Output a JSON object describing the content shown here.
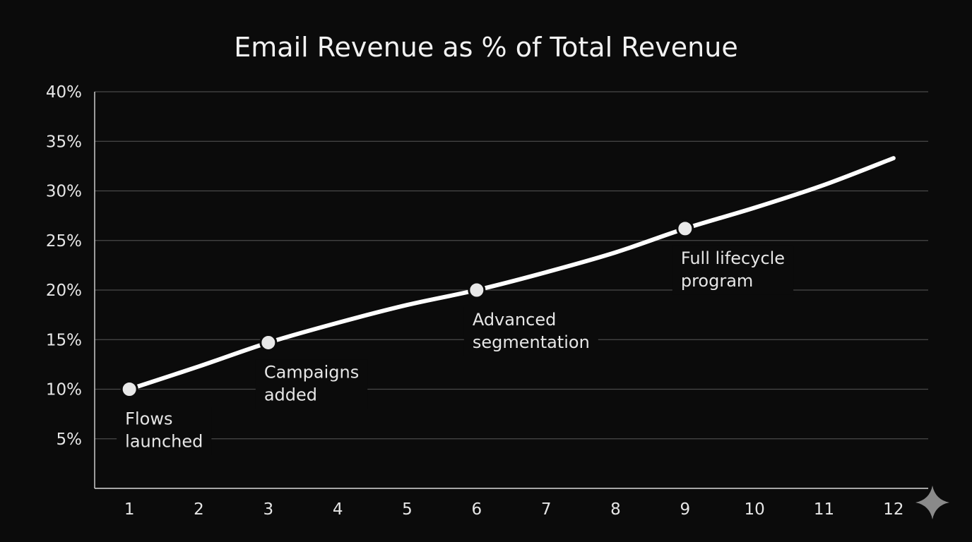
{
  "chart_data": {
    "type": "line",
    "title": "Email Revenue as % of Total Revenue",
    "xlabel": "",
    "ylabel": "",
    "x": [
      1,
      2,
      3,
      4,
      5,
      6,
      7,
      8,
      9,
      10,
      11,
      12
    ],
    "x_tick_labels": [
      "1",
      "2",
      "3",
      "4",
      "5",
      "6",
      "7",
      "8",
      "9",
      "10",
      "11",
      "12"
    ],
    "y_tick_labels": [
      "5%",
      "10%",
      "15%",
      "20%",
      "25%",
      "30%",
      "35%",
      "40%"
    ],
    "y_ticks": [
      5,
      10,
      15,
      20,
      25,
      30,
      35,
      40
    ],
    "xlim": [
      0.5,
      12.5
    ],
    "ylim": [
      0,
      40
    ],
    "grid": true,
    "series": [
      {
        "values": [
          10,
          12.3,
          14.7,
          16.7,
          18.5,
          20,
          21.8,
          23.8,
          26.2,
          28.3,
          30.6,
          33.3
        ],
        "color": "#ffffff"
      }
    ],
    "annotations": [
      {
        "x": 1,
        "y": 10,
        "lines": [
          "Flows",
          "launched"
        ]
      },
      {
        "x": 3,
        "y": 14.7,
        "lines": [
          "Campaigns",
          "added"
        ]
      },
      {
        "x": 6,
        "y": 20,
        "lines": [
          "Advanced",
          "segmentation"
        ]
      },
      {
        "x": 9,
        "y": 26.2,
        "lines": [
          "Full lifecycle",
          "program"
        ]
      }
    ]
  },
  "colors": {
    "background": "#0b0b0b",
    "line": "#ffffff",
    "grid": "#4a4a4a",
    "text": "#e6e6e6",
    "marker": "#e8e8e8"
  },
  "icons": {
    "corner": "sparkle-icon"
  }
}
